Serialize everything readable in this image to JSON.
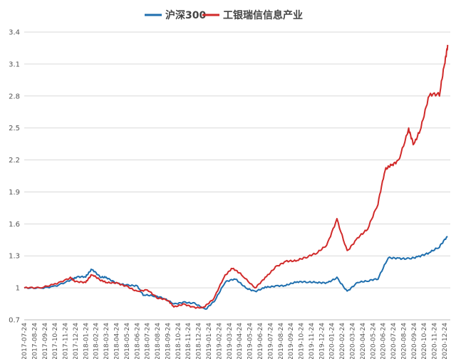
{
  "chart_data": {
    "type": "line",
    "title": "",
    "xlabel": "",
    "ylabel": "",
    "legend_position": "top-center",
    "grid": {
      "horizontal": true,
      "vertical": false
    },
    "ylim": [
      0.7,
      3.4
    ],
    "y_ticks": [
      0.7,
      1,
      1.3,
      1.6,
      1.9,
      2.2,
      2.5,
      2.8,
      3.1,
      3.4
    ],
    "y_tick_labels": [
      "0.7",
      "1",
      "1.3",
      "1.6",
      "1.9",
      "2.2",
      "2.5",
      "2.8",
      "3.1",
      "3.4"
    ],
    "x_tick_labels": [
      "2017-07-24",
      "2017-08-24",
      "2017-09-24",
      "2017-10-24",
      "2017-11-24",
      "2017-12-24",
      "2018-01-24",
      "2018-02-24",
      "2018-03-24",
      "2018-04-24",
      "2018-05-24",
      "2018-06-24",
      "2018-07-24",
      "2018-08-24",
      "2018-09-24",
      "2018-10-24",
      "2018-11-24",
      "2018-12-24",
      "2019-01-24",
      "2019-02-24",
      "2019-03-24",
      "2019-04-24",
      "2019-05-24",
      "2019-06-24",
      "2019-07-24",
      "2019-08-24",
      "2019-09-24",
      "2019-10-24",
      "2019-11-24",
      "2019-12-24",
      "2020-01-24",
      "2020-02-24",
      "2020-03-24",
      "2020-04-24",
      "2020-05-24",
      "2020-06-24",
      "2020-07-24",
      "2020-08-24",
      "2020-09-24",
      "2020-10-24",
      "2020-11-24",
      "2020-12-24"
    ],
    "series": [
      {
        "name": "沪深300",
        "color": "#1f6fae",
        "points": [
          [
            0,
            1.0
          ],
          [
            1.5,
            1.0
          ],
          [
            3,
            1.02
          ],
          [
            4.6,
            1.08
          ],
          [
            5.1,
            1.1
          ],
          [
            6,
            1.1
          ],
          [
            6.6,
            1.17
          ],
          [
            7.4,
            1.1
          ],
          [
            8,
            1.1
          ],
          [
            9,
            1.05
          ],
          [
            10,
            1.03
          ],
          [
            11,
            1.02
          ],
          [
            11.6,
            0.93
          ],
          [
            12.6,
            0.92
          ],
          [
            13.6,
            0.9
          ],
          [
            14.6,
            0.85
          ],
          [
            15.6,
            0.87
          ],
          [
            16.6,
            0.86
          ],
          [
            17.7,
            0.8
          ],
          [
            18.6,
            0.88
          ],
          [
            19.6,
            1.05
          ],
          [
            20.6,
            1.08
          ],
          [
            21.6,
            1.0
          ],
          [
            22.5,
            0.97
          ],
          [
            23.5,
            1.01
          ],
          [
            24.5,
            1.02
          ],
          [
            25.5,
            1.02
          ],
          [
            26.5,
            1.05
          ],
          [
            27.5,
            1.05
          ],
          [
            28.5,
            1.05
          ],
          [
            29.5,
            1.05
          ],
          [
            30.5,
            1.1
          ],
          [
            31.5,
            0.97
          ],
          [
            32.5,
            1.05
          ],
          [
            33.5,
            1.06
          ],
          [
            34.5,
            1.08
          ],
          [
            35.5,
            1.28
          ],
          [
            36.5,
            1.28
          ],
          [
            37.5,
            1.28
          ],
          [
            38.5,
            1.3
          ],
          [
            39.5,
            1.33
          ],
          [
            40.5,
            1.38
          ],
          [
            41.3,
            1.48
          ]
        ]
      },
      {
        "name": "工银瑞信信息产业",
        "color": "#d12a2a",
        "points": [
          [
            0,
            1.0
          ],
          [
            1.5,
            1.0
          ],
          [
            3,
            1.04
          ],
          [
            4.5,
            1.1
          ],
          [
            5,
            1.06
          ],
          [
            6,
            1.05
          ],
          [
            6.6,
            1.12
          ],
          [
            7.4,
            1.07
          ],
          [
            8,
            1.05
          ],
          [
            9,
            1.05
          ],
          [
            10,
            1.02
          ],
          [
            11,
            0.97
          ],
          [
            12,
            0.98
          ],
          [
            13,
            0.9
          ],
          [
            14,
            0.88
          ],
          [
            14.6,
            0.82
          ],
          [
            15.6,
            0.85
          ],
          [
            16.6,
            0.82
          ],
          [
            17.5,
            0.82
          ],
          [
            18.5,
            0.9
          ],
          [
            19.5,
            1.1
          ],
          [
            20.3,
            1.18
          ],
          [
            21.2,
            1.12
          ],
          [
            22.5,
            1.0
          ],
          [
            23.5,
            1.1
          ],
          [
            24.5,
            1.2
          ],
          [
            25.5,
            1.25
          ],
          [
            26.5,
            1.25
          ],
          [
            27.5,
            1.28
          ],
          [
            28.5,
            1.32
          ],
          [
            29.5,
            1.4
          ],
          [
            30.5,
            1.65
          ],
          [
            31.5,
            1.35
          ],
          [
            32.5,
            1.47
          ],
          [
            33.5,
            1.55
          ],
          [
            34.5,
            1.78
          ],
          [
            35.2,
            2.1
          ],
          [
            35.8,
            2.15
          ],
          [
            36.5,
            2.2
          ],
          [
            37.5,
            2.5
          ],
          [
            38,
            2.35
          ],
          [
            38.7,
            2.5
          ],
          [
            39.5,
            2.8
          ],
          [
            40.5,
            2.8
          ],
          [
            41,
            3.1
          ],
          [
            41.3,
            3.28
          ]
        ]
      }
    ]
  }
}
